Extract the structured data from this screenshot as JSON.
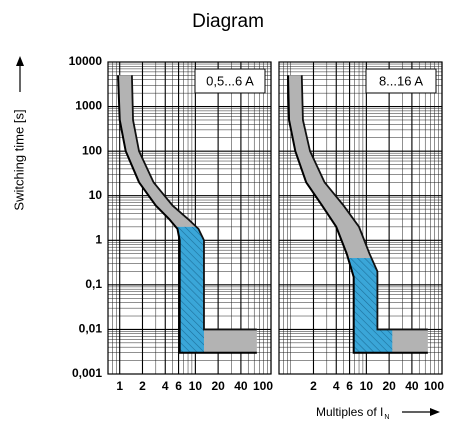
{
  "chart_data": [
    {
      "type": "range-area",
      "title": "Diagram",
      "y_label": "Switching time [s]",
      "label": "0,5...6 A",
      "color": "#b3b3b3",
      "highlight_color": "#3aa6d8",
      "lower": {
        "x": [
          0.95,
          1.0,
          1.2,
          1.8,
          3.0,
          4.5,
          5.8,
          6.2,
          6.2,
          65
        ],
        "y": [
          5000,
          500,
          100,
          20,
          6,
          3,
          1.8,
          1,
          0.003,
          0.003
        ]
      },
      "upper": {
        "x": [
          1.45,
          1.5,
          1.8,
          2.8,
          5,
          8,
          11,
          13,
          13,
          65
        ],
        "y": [
          5000,
          500,
          100,
          20,
          6,
          3,
          1.8,
          1,
          0.01,
          0.01
        ]
      },
      "highlight": {
        "xmax": 13,
        "ymax": 2
      },
      "xlim": [
        0.7,
        100
      ],
      "xticks": [
        1,
        2,
        4,
        6,
        10,
        20,
        40,
        100
      ],
      "log_x": true,
      "ylim": [
        0.001,
        10000
      ],
      "log_y": true,
      "yticks": [
        {
          "value": 0.001,
          "label": "0,001"
        },
        {
          "value": 0.01,
          "label": "0,01"
        },
        {
          "value": 0.1,
          "label": "0,1"
        },
        1,
        10,
        100,
        1000,
        10000
      ],
      "grid": true
    },
    {
      "type": "range-area",
      "label": "8...16 A",
      "x_label": "Multiples of I",
      "x_label_sub": "N",
      "color": "#b3b3b3",
      "highlight_color": "#3aa6d8",
      "lower": {
        "x": [
          0.92,
          0.95,
          1.15,
          1.6,
          2.6,
          4.0,
          5.5,
          6.8,
          6.8,
          65
        ],
        "y": [
          5000,
          500,
          100,
          20,
          6,
          2,
          0.5,
          0.15,
          0.003,
          0.003
        ]
      },
      "upper": {
        "x": [
          1.4,
          1.45,
          1.8,
          2.8,
          5,
          8,
          11,
          14,
          14,
          65
        ],
        "y": [
          5000,
          500,
          100,
          20,
          6,
          2,
          0.5,
          0.2,
          0.01,
          0.01
        ]
      },
      "highlight": {
        "xmax": 22,
        "ymax": 0.4
      },
      "xlim": [
        0.7,
        100
      ],
      "xticks": [
        2,
        4,
        6,
        10,
        20,
        40,
        100
      ],
      "log_x": true,
      "ylim": [
        0.001,
        10000
      ],
      "log_y": true,
      "yticks": [
        0.001,
        0.01,
        0.1,
        1,
        10,
        100,
        1000,
        10000
      ],
      "grid": true
    }
  ]
}
